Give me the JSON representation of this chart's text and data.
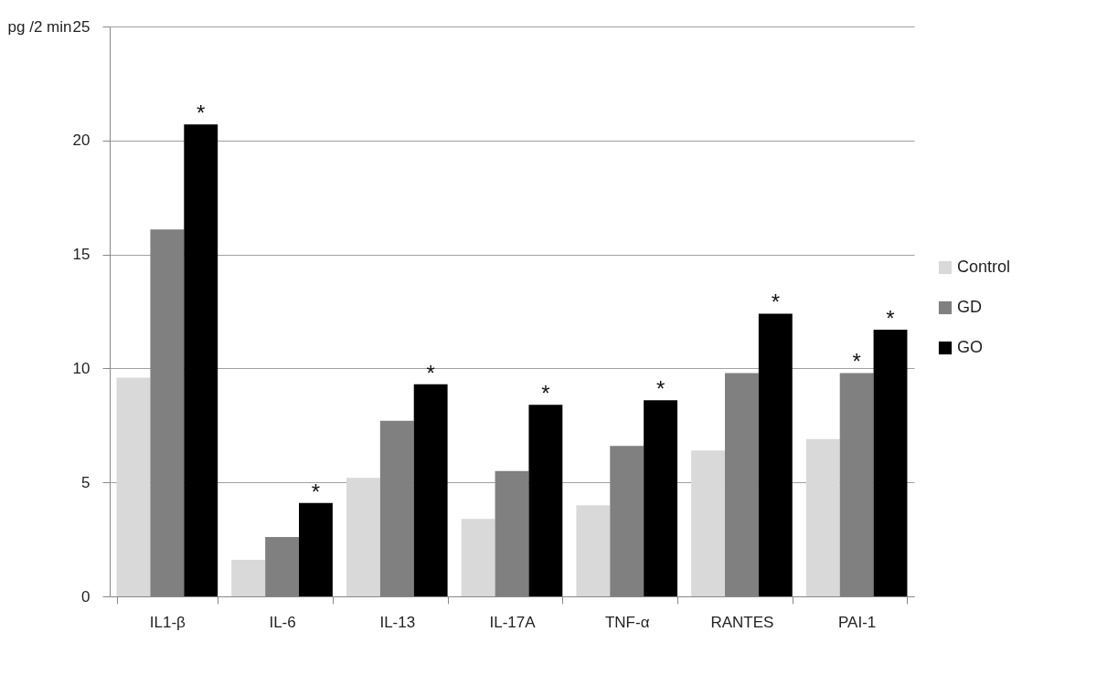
{
  "chart_data": {
    "type": "bar",
    "ylabel": "pg /2 min",
    "categories": [
      "IL1-β",
      "IL-6",
      "IL-13",
      "IL-17A",
      "TNF-α",
      "RANTES",
      "PAI-1"
    ],
    "series": [
      {
        "name": "Control",
        "color": "#d9d9d9",
        "values": [
          9.6,
          1.6,
          5.2,
          3.4,
          4.0,
          6.4,
          6.9
        ]
      },
      {
        "name": "GD",
        "color": "#808080",
        "values": [
          16.1,
          2.6,
          7.7,
          5.5,
          6.6,
          9.8,
          9.8
        ],
        "value_labels": [
          null,
          null,
          null,
          null,
          null,
          null,
          "*"
        ]
      },
      {
        "name": "GO",
        "color": "#000000",
        "values": [
          20.7,
          4.1,
          9.3,
          8.4,
          8.6,
          12.4,
          11.7
        ],
        "value_labels": [
          "*",
          "*",
          "*",
          "*",
          "*",
          "*",
          "*"
        ]
      }
    ],
    "ylim": [
      0,
      25
    ],
    "yticks": [
      0,
      5,
      10,
      15,
      20,
      25
    ],
    "grid": "y",
    "legend": "right"
  }
}
